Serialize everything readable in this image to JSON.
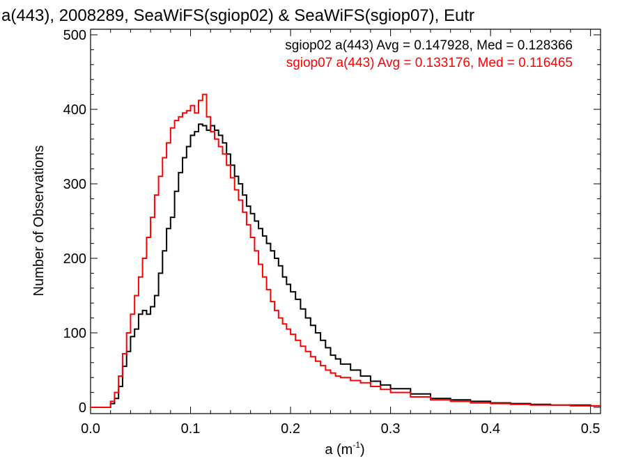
{
  "chart_data": {
    "type": "line",
    "title": "a(443), 2008289, SeaWiFS(sgiop02) & SeaWiFS(sgiop07), Eutr",
    "xlabel": "a (m",
    "xlabel_sup": "-1",
    "xlabel_close": ")",
    "ylabel": "Number of Observations",
    "xlim": [
      0.0,
      0.51
    ],
    "ylim": [
      0,
      500
    ],
    "x_ticks": [
      0.0,
      0.1,
      0.2,
      0.3,
      0.4,
      0.5
    ],
    "x_tick_labels": [
      "0.0",
      "0.1",
      "0.2",
      "0.3",
      "0.4",
      "0.5"
    ],
    "y_ticks": [
      0,
      100,
      200,
      300,
      400,
      500
    ],
    "y_tick_labels": [
      "0",
      "100",
      "200",
      "300",
      "400",
      "500"
    ],
    "grid": false,
    "legend_position": "top-right",
    "style": "step",
    "annotations": [
      {
        "text": "sgiop02 a(443) Avg = 0.147928, Med = 0.128366",
        "color": "#000000"
      },
      {
        "text": "sgiop07 a(443) Avg = 0.133176, Med = 0.116465",
        "color": "#ff0000"
      }
    ],
    "series": [
      {
        "color": "#000000",
        "points": [
          [
            0.0,
            0
          ],
          [
            0.016,
            0
          ],
          [
            0.02,
            5
          ],
          [
            0.024,
            12
          ],
          [
            0.028,
            28
          ],
          [
            0.032,
            55
          ],
          [
            0.036,
            75
          ],
          [
            0.04,
            95
          ],
          [
            0.044,
            105
          ],
          [
            0.048,
            125
          ],
          [
            0.052,
            130
          ],
          [
            0.056,
            125
          ],
          [
            0.06,
            135
          ],
          [
            0.064,
            150
          ],
          [
            0.068,
            180
          ],
          [
            0.072,
            210
          ],
          [
            0.076,
            240
          ],
          [
            0.08,
            255
          ],
          [
            0.084,
            290
          ],
          [
            0.088,
            315
          ],
          [
            0.092,
            335
          ],
          [
            0.096,
            350
          ],
          [
            0.1,
            365
          ],
          [
            0.104,
            370
          ],
          [
            0.108,
            380
          ],
          [
            0.112,
            378
          ],
          [
            0.116,
            372
          ],
          [
            0.12,
            378
          ],
          [
            0.124,
            372
          ],
          [
            0.128,
            365
          ],
          [
            0.132,
            355
          ],
          [
            0.136,
            340
          ],
          [
            0.14,
            325
          ],
          [
            0.144,
            310
          ],
          [
            0.148,
            300
          ],
          [
            0.152,
            285
          ],
          [
            0.156,
            270
          ],
          [
            0.16,
            260
          ],
          [
            0.164,
            250
          ],
          [
            0.168,
            240
          ],
          [
            0.172,
            230
          ],
          [
            0.176,
            220
          ],
          [
            0.18,
            210
          ],
          [
            0.184,
            200
          ],
          [
            0.188,
            190
          ],
          [
            0.192,
            175
          ],
          [
            0.196,
            165
          ],
          [
            0.2,
            155
          ],
          [
            0.205,
            145
          ],
          [
            0.21,
            132
          ],
          [
            0.215,
            120
          ],
          [
            0.22,
            110
          ],
          [
            0.225,
            100
          ],
          [
            0.23,
            90
          ],
          [
            0.235,
            80
          ],
          [
            0.24,
            70
          ],
          [
            0.245,
            65
          ],
          [
            0.25,
            58
          ],
          [
            0.26,
            50
          ],
          [
            0.27,
            42
          ],
          [
            0.28,
            35
          ],
          [
            0.29,
            30
          ],
          [
            0.3,
            25
          ],
          [
            0.32,
            18
          ],
          [
            0.34,
            12
          ],
          [
            0.36,
            10
          ],
          [
            0.38,
            8
          ],
          [
            0.4,
            6
          ],
          [
            0.42,
            5
          ],
          [
            0.44,
            4
          ],
          [
            0.46,
            3
          ],
          [
            0.48,
            3
          ],
          [
            0.5,
            2
          ],
          [
            0.51,
            2
          ]
        ]
      },
      {
        "color": "#ff0000",
        "points": [
          [
            0.0,
            0
          ],
          [
            0.016,
            0
          ],
          [
            0.02,
            8
          ],
          [
            0.024,
            20
          ],
          [
            0.028,
            42
          ],
          [
            0.032,
            72
          ],
          [
            0.036,
            100
          ],
          [
            0.04,
            125
          ],
          [
            0.044,
            150
          ],
          [
            0.048,
            175
          ],
          [
            0.052,
            200
          ],
          [
            0.056,
            228
          ],
          [
            0.06,
            255
          ],
          [
            0.064,
            285
          ],
          [
            0.068,
            310
          ],
          [
            0.072,
            335
          ],
          [
            0.076,
            355
          ],
          [
            0.08,
            375
          ],
          [
            0.084,
            385
          ],
          [
            0.088,
            390
          ],
          [
            0.092,
            395
          ],
          [
            0.096,
            398
          ],
          [
            0.1,
            405
          ],
          [
            0.104,
            395
          ],
          [
            0.108,
            412
          ],
          [
            0.112,
            420
          ],
          [
            0.116,
            390
          ],
          [
            0.12,
            370
          ],
          [
            0.124,
            360
          ],
          [
            0.128,
            350
          ],
          [
            0.132,
            340
          ],
          [
            0.136,
            325
          ],
          [
            0.14,
            308
          ],
          [
            0.144,
            292
          ],
          [
            0.148,
            278
          ],
          [
            0.152,
            262
          ],
          [
            0.156,
            245
          ],
          [
            0.16,
            228
          ],
          [
            0.164,
            210
          ],
          [
            0.168,
            192
          ],
          [
            0.172,
            175
          ],
          [
            0.176,
            158
          ],
          [
            0.18,
            142
          ],
          [
            0.184,
            130
          ],
          [
            0.188,
            120
          ],
          [
            0.192,
            112
          ],
          [
            0.196,
            105
          ],
          [
            0.2,
            98
          ],
          [
            0.205,
            90
          ],
          [
            0.21,
            82
          ],
          [
            0.215,
            75
          ],
          [
            0.22,
            68
          ],
          [
            0.225,
            62
          ],
          [
            0.23,
            56
          ],
          [
            0.235,
            50
          ],
          [
            0.24,
            46
          ],
          [
            0.245,
            42
          ],
          [
            0.25,
            40
          ],
          [
            0.26,
            36
          ],
          [
            0.27,
            33
          ],
          [
            0.28,
            28
          ],
          [
            0.29,
            24
          ],
          [
            0.3,
            20
          ],
          [
            0.32,
            14
          ],
          [
            0.34,
            10
          ],
          [
            0.36,
            8
          ],
          [
            0.38,
            6
          ],
          [
            0.4,
            5
          ],
          [
            0.42,
            4
          ],
          [
            0.44,
            3
          ],
          [
            0.46,
            3
          ],
          [
            0.48,
            2
          ],
          [
            0.5,
            2
          ],
          [
            0.51,
            2
          ]
        ]
      }
    ]
  }
}
